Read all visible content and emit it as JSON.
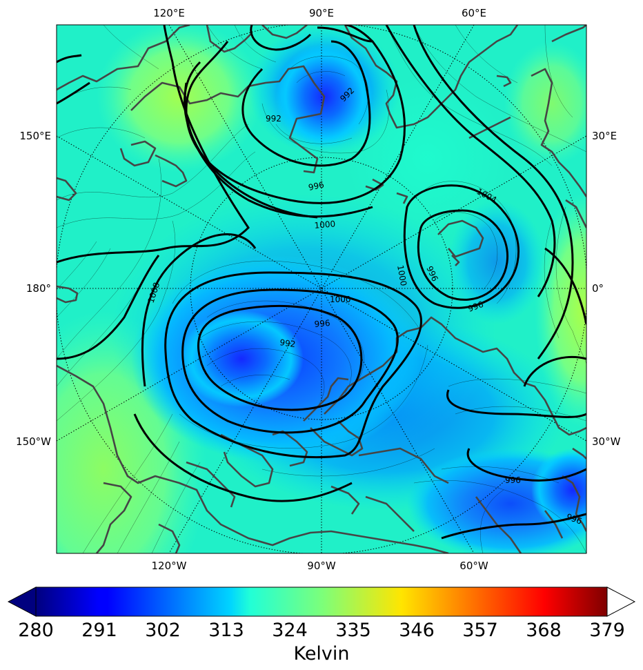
{
  "map": {
    "top_labels": [
      "120°E",
      "90°E",
      "60°E"
    ],
    "bottom_labels": [
      "120°W",
      "90°W",
      "60°W"
    ],
    "left_labels": [
      "150°E",
      "180°",
      "150°W"
    ],
    "right_labels": [
      "30°E",
      "0°",
      "30°W"
    ],
    "contour_labels": [
      "992",
      "992",
      "996",
      "1000",
      "1004",
      "1000",
      "996",
      "996",
      "1008",
      "1000",
      "996",
      "992",
      "996",
      "996"
    ]
  },
  "colorbar": {
    "ticks": [
      "280",
      "291",
      "302",
      "313",
      "324",
      "335",
      "346",
      "357",
      "368",
      "379"
    ],
    "units": "Kelvin",
    "min": 280,
    "max": 379,
    "colormap": "jet"
  },
  "colors": {
    "coastline": "#454545",
    "contour": "#000000",
    "frame": "#000000"
  }
}
